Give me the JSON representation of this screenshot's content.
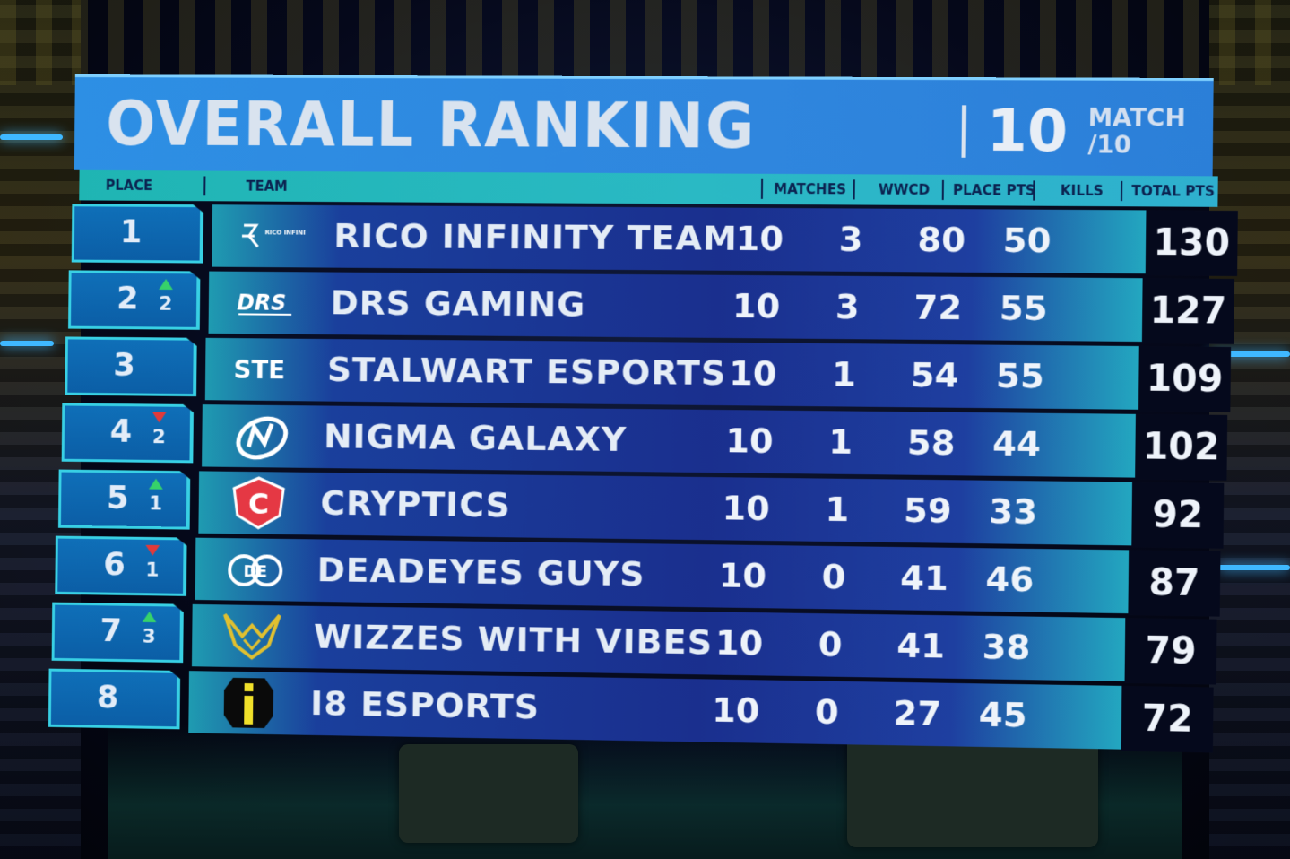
{
  "board": {
    "title": "OVERALL RANKING",
    "match_number": "10",
    "match_label_top": "MATCH",
    "match_label_bottom": "/10"
  },
  "columns": {
    "place": "PLACE",
    "team": "TEAM",
    "matches": "MATCHES",
    "wwcd": "WWCD",
    "place_pts": "PLACE PTS",
    "kills": "KILLS",
    "total_pts": "TOTAL PTS"
  },
  "rows": [
    {
      "place": "1",
      "delta": "",
      "trend": "none",
      "team": "RICO INFINITY TEAM",
      "logo_text": "RICO INFINITY TEAM",
      "logo_icon": "rico-infinity-logo-icon",
      "matches": "10",
      "wwcd": "3",
      "place_pts": "80",
      "kills": "50",
      "total": "130"
    },
    {
      "place": "2",
      "delta": "2",
      "trend": "up",
      "team": "DRS GAMING",
      "logo_text": "DRS",
      "logo_icon": "drs-gaming-logo-icon",
      "matches": "10",
      "wwcd": "3",
      "place_pts": "72",
      "kills": "55",
      "total": "127"
    },
    {
      "place": "3",
      "delta": "",
      "trend": "none",
      "team": "STALWART ESPORTS",
      "logo_text": "STE",
      "logo_icon": "stalwart-logo-icon",
      "matches": "10",
      "wwcd": "1",
      "place_pts": "54",
      "kills": "55",
      "total": "109"
    },
    {
      "place": "4",
      "delta": "2",
      "trend": "down",
      "team": "NIGMA GALAXY",
      "logo_text": "",
      "logo_icon": "nigma-galaxy-logo-icon",
      "matches": "10",
      "wwcd": "1",
      "place_pts": "58",
      "kills": "44",
      "total": "102"
    },
    {
      "place": "5",
      "delta": "1",
      "trend": "up",
      "team": "CRYPTICS",
      "logo_text": "C",
      "logo_icon": "cryptics-logo-icon",
      "matches": "10",
      "wwcd": "1",
      "place_pts": "59",
      "kills": "33",
      "total": "92"
    },
    {
      "place": "6",
      "delta": "1",
      "trend": "down",
      "team": "DEADEYES GUYS",
      "logo_text": "DE",
      "logo_icon": "deadeyes-logo-icon",
      "matches": "10",
      "wwcd": "0",
      "place_pts": "41",
      "kills": "46",
      "total": "87"
    },
    {
      "place": "7",
      "delta": "3",
      "trend": "up",
      "team": "WIZZES WITH VIBES",
      "logo_text": "",
      "logo_icon": "wizzes-logo-icon",
      "matches": "10",
      "wwcd": "0",
      "place_pts": "41",
      "kills": "38",
      "total": "79"
    },
    {
      "place": "8",
      "delta": "",
      "trend": "none",
      "team": "I8 ESPORTS",
      "logo_text": "i",
      "logo_icon": "i8-esports-logo-icon",
      "matches": "10",
      "wwcd": "0",
      "place_pts": "27",
      "kills": "45",
      "total": "72"
    }
  ],
  "colors": {
    "title_bar": "#2d8fe4",
    "header_row": "#1fb5b3",
    "row_band": "#1a2f8e",
    "place_border": "#38d0e4",
    "total_box": "#05091c",
    "trend_up": "#36d26a",
    "trend_down": "#e23a3a"
  }
}
